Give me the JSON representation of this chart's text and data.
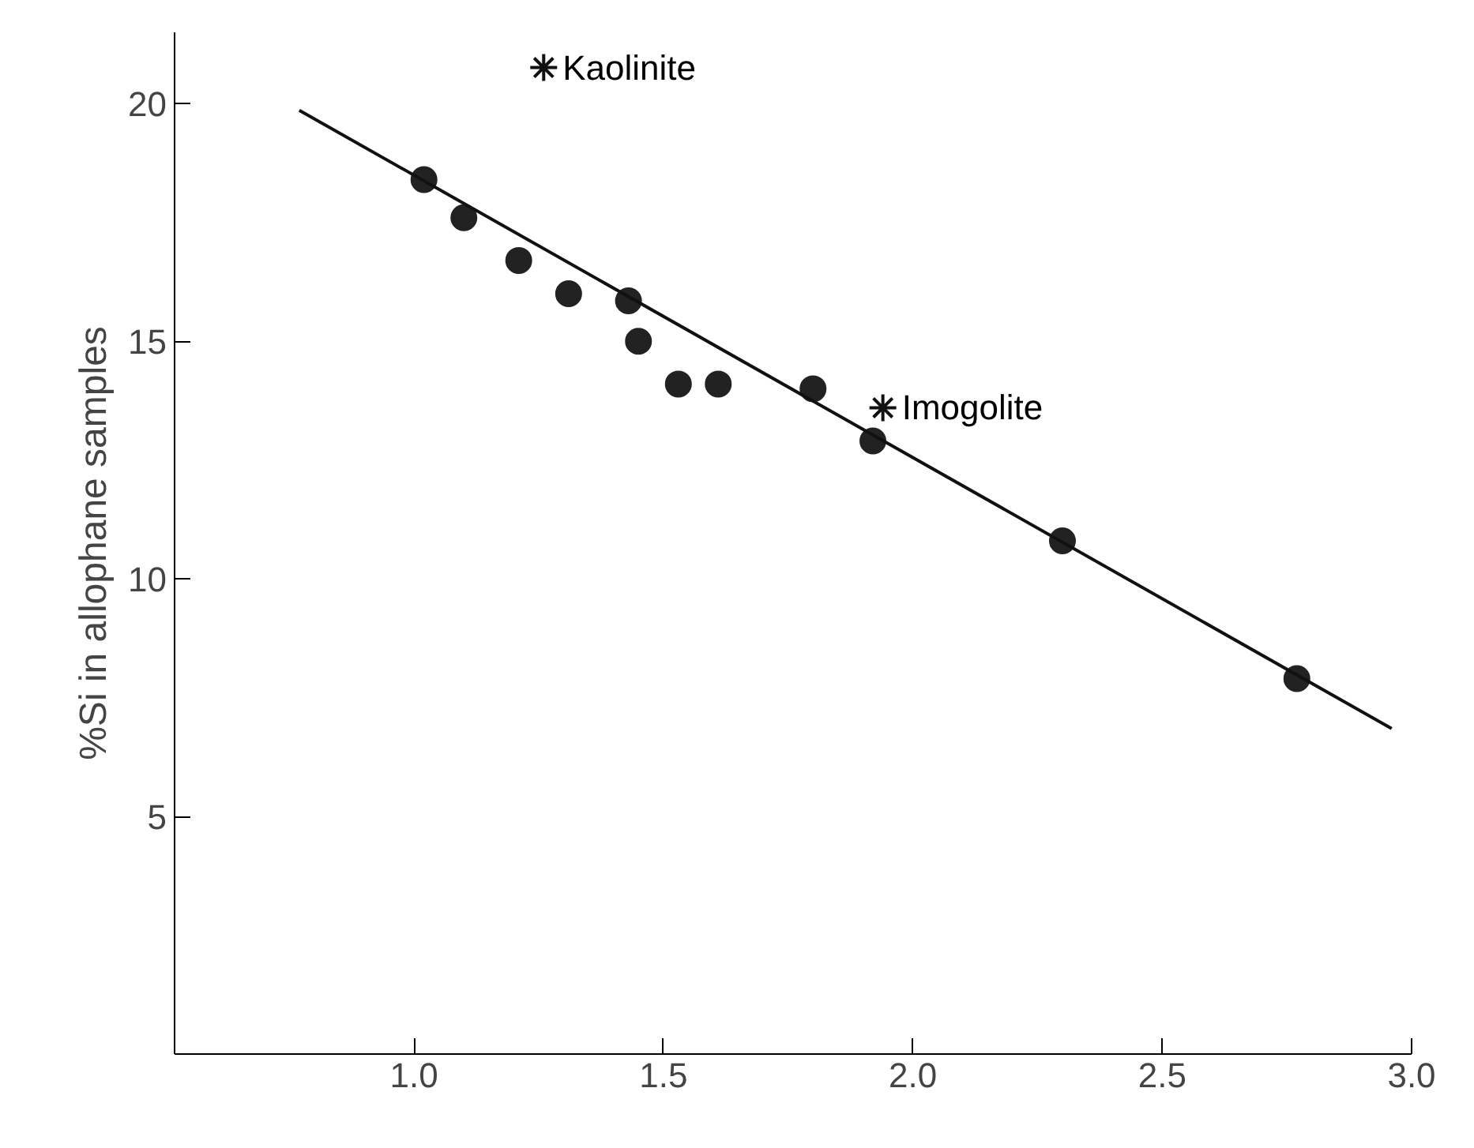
{
  "chart_data": {
    "type": "scatter",
    "ylabel": "%Si in allophane samples",
    "xlim": [
      0.52,
      3.0
    ],
    "ylim": [
      0,
      21.5
    ],
    "xticks": [
      {
        "value": 1,
        "label": "1.0"
      },
      {
        "value": 1.5,
        "label": "1.5"
      },
      {
        "value": 2,
        "label": "2.0"
      },
      {
        "value": 2.5,
        "label": "2.5"
      },
      {
        "value": 3,
        "label": "3.0"
      }
    ],
    "yticks": [
      5,
      10,
      15,
      20
    ],
    "grid": false,
    "series": [
      {
        "marker": "circle",
        "color": "#222222",
        "x": [
          1.02,
          1.1,
          1.21,
          1.31,
          1.43,
          1.45,
          1.53,
          1.61,
          1.8,
          1.92,
          2.3,
          2.77
        ],
        "values": [
          18.4,
          17.6,
          16.7,
          16.0,
          15.85,
          15.0,
          14.1,
          14.1,
          14.0,
          12.9,
          10.8,
          7.9
        ]
      },
      {
        "type": "line",
        "line_style": "solid",
        "color": "#111111",
        "x": [
          0.77,
          2.96
        ],
        "values": [
          19.86,
          6.85
        ]
      },
      {
        "marker": "cross",
        "name": "Kaolinite",
        "color": "#111111",
        "x": [
          1.26
        ],
        "values": [
          20.76
        ]
      },
      {
        "marker": "cross",
        "name": "Imogolite",
        "color": "#111111",
        "x": [
          1.94
        ],
        "values": [
          13.6
        ]
      }
    ]
  }
}
